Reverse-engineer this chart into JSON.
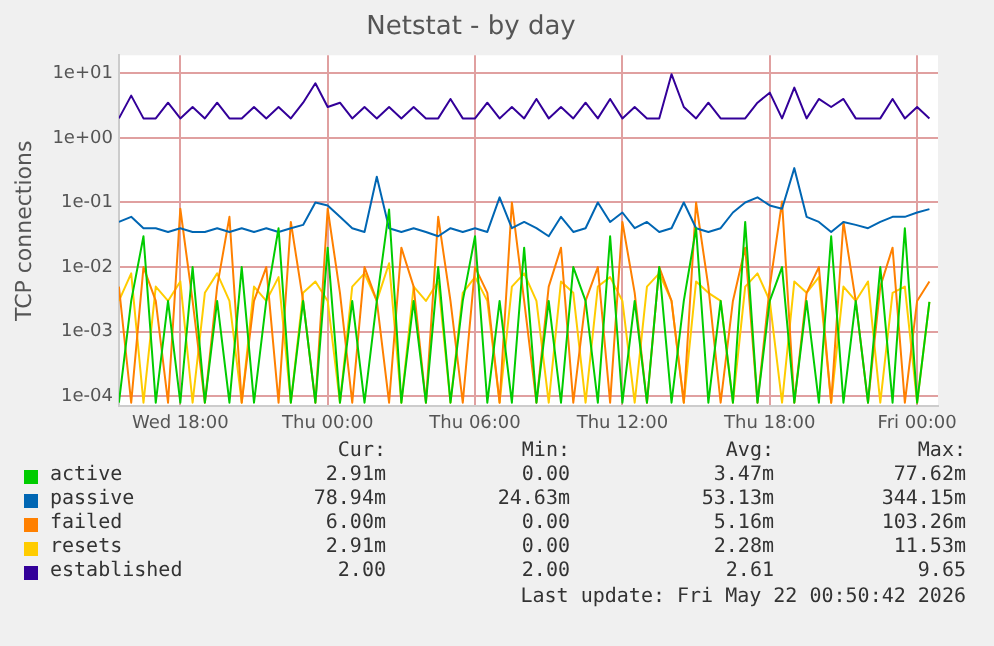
{
  "chart_data": {
    "type": "line",
    "title": "Netstat - by day",
    "ylabel": "TCP connections",
    "x": [
      "2026-05-20T15:30",
      "2026-05-20T16:00",
      "2026-05-20T16:30",
      "2026-05-20T17:00",
      "2026-05-20T17:30",
      "2026-05-20T18:00",
      "2026-05-20T18:30",
      "2026-05-20T19:00",
      "2026-05-20T19:30",
      "2026-05-20T20:00",
      "2026-05-20T20:30",
      "2026-05-20T21:00",
      "2026-05-20T21:30",
      "2026-05-20T22:00",
      "2026-05-20T22:30",
      "2026-05-20T23:00",
      "2026-05-20T23:30",
      "2026-05-21T00:00",
      "2026-05-21T00:30",
      "2026-05-21T01:00",
      "2026-05-21T01:30",
      "2026-05-21T02:00",
      "2026-05-21T02:30",
      "2026-05-21T03:00",
      "2026-05-21T03:30",
      "2026-05-21T04:00",
      "2026-05-21T04:30",
      "2026-05-21T05:00",
      "2026-05-21T05:30",
      "2026-05-21T06:00",
      "2026-05-21T06:30",
      "2026-05-21T07:00",
      "2026-05-21T07:30",
      "2026-05-21T08:00",
      "2026-05-21T08:30",
      "2026-05-21T09:00",
      "2026-05-21T09:30",
      "2026-05-21T10:00",
      "2026-05-21T10:30",
      "2026-05-21T11:00",
      "2026-05-21T11:30",
      "2026-05-21T12:00",
      "2026-05-21T12:30",
      "2026-05-21T13:00",
      "2026-05-21T13:30",
      "2026-05-21T14:00",
      "2026-05-21T14:30",
      "2026-05-21T15:00",
      "2026-05-21T15:30",
      "2026-05-21T16:00",
      "2026-05-21T16:30",
      "2026-05-21T17:00",
      "2026-05-21T17:30",
      "2026-05-21T18:00",
      "2026-05-21T18:30",
      "2026-05-21T19:00",
      "2026-05-21T19:30",
      "2026-05-21T20:00",
      "2026-05-21T20:30",
      "2026-05-21T21:00",
      "2026-05-21T21:30",
      "2026-05-21T22:00",
      "2026-05-21T22:30",
      "2026-05-21T23:00",
      "2026-05-21T23:30",
      "2026-05-22T00:00",
      "2026-05-22T00:30"
    ],
    "xlim": [
      "2026-05-20T15:30",
      "2026-05-22T00:51"
    ],
    "xticks": [
      {
        "value": "2026-05-20T18:00",
        "label": "Wed 18:00"
      },
      {
        "value": "2026-05-21T00:00",
        "label": "Thu 00:00"
      },
      {
        "value": "2026-05-21T06:00",
        "label": "Thu 06:00"
      },
      {
        "value": "2026-05-21T12:00",
        "label": "Thu 12:00"
      },
      {
        "value": "2026-05-21T18:00",
        "label": "Thu 18:00"
      },
      {
        "value": "2026-05-22T00:00",
        "label": "Fri 00:00"
      }
    ],
    "log": "y",
    "ylim": [
      7.5e-05,
      19
    ],
    "yticks": [
      {
        "value": 10,
        "label": "1e+01"
      },
      {
        "value": 1,
        "label": "1e+00"
      },
      {
        "value": 0.1,
        "label": "1e-01"
      },
      {
        "value": 0.01,
        "label": "1e-02"
      },
      {
        "value": 0.001,
        "label": "1e-03"
      },
      {
        "value": 0.0001,
        "label": "1e-04"
      }
    ],
    "grid": true,
    "legend": "bottom",
    "series": [
      {
        "name": "active",
        "color": "#00cc00",
        "values": [
          8e-05,
          0.003,
          0.03,
          8e-05,
          0.003,
          8e-05,
          0.01,
          8e-05,
          0.003,
          8e-05,
          0.01,
          8e-05,
          0.003,
          0.04,
          8e-05,
          0.003,
          8e-05,
          0.02,
          8e-05,
          0.003,
          8e-05,
          0.003,
          0.0776,
          8e-05,
          0.003,
          8e-05,
          0.01,
          8e-05,
          0.003,
          0.03,
          8e-05,
          0.003,
          8e-05,
          0.02,
          8e-05,
          0.003,
          8e-05,
          0.01,
          0.003,
          8e-05,
          0.03,
          8e-05,
          0.003,
          8e-05,
          0.01,
          8e-05,
          0.003,
          0.04,
          8e-05,
          0.003,
          8e-05,
          0.05,
          8e-05,
          0.003,
          0.01,
          8e-05,
          0.003,
          8e-05,
          0.03,
          8e-05,
          0.003,
          8e-05,
          0.01,
          8e-05,
          0.04,
          8e-05,
          0.00291
        ]
      },
      {
        "name": "passive",
        "color": "#0066b3",
        "values": [
          0.05,
          0.06,
          0.04,
          0.04,
          0.035,
          0.04,
          0.035,
          0.035,
          0.04,
          0.035,
          0.04,
          0.035,
          0.04,
          0.035,
          0.04,
          0.045,
          0.1,
          0.09,
          0.06,
          0.04,
          0.035,
          0.25,
          0.04,
          0.035,
          0.04,
          0.035,
          0.03,
          0.04,
          0.035,
          0.04,
          0.035,
          0.12,
          0.04,
          0.05,
          0.04,
          0.03,
          0.06,
          0.035,
          0.04,
          0.1,
          0.05,
          0.07,
          0.04,
          0.05,
          0.035,
          0.04,
          0.1,
          0.04,
          0.035,
          0.04,
          0.07,
          0.1,
          0.12,
          0.09,
          0.08,
          0.34,
          0.06,
          0.05,
          0.035,
          0.05,
          0.045,
          0.04,
          0.05,
          0.06,
          0.06,
          0.07,
          0.07894
        ]
      },
      {
        "name": "failed",
        "color": "#ff8000",
        "values": [
          0.005,
          8e-05,
          0.01,
          0.003,
          8e-05,
          0.08,
          0.003,
          8e-05,
          0.005,
          0.06,
          8e-05,
          0.003,
          0.01,
          8e-05,
          0.05,
          0.003,
          8e-05,
          0.08,
          0.004,
          8e-05,
          0.01,
          0.003,
          8e-05,
          0.02,
          0.005,
          8e-05,
          0.06,
          0.003,
          8e-05,
          0.01,
          0.004,
          8e-05,
          0.1,
          0.003,
          8e-05,
          0.005,
          0.02,
          8e-05,
          0.003,
          0.01,
          8e-05,
          0.05,
          0.004,
          8e-05,
          0.01,
          0.003,
          8e-05,
          0.1,
          0.005,
          8e-05,
          0.003,
          0.02,
          8e-05,
          0.005,
          0.1033,
          8e-05,
          0.004,
          0.01,
          8e-05,
          0.05,
          0.003,
          8e-05,
          0.005,
          0.02,
          8e-05,
          0.003,
          0.006
        ]
      },
      {
        "name": "resets",
        "color": "#ffcc00",
        "values": [
          0.003,
          0.008,
          8e-05,
          0.005,
          0.003,
          0.006,
          8e-05,
          0.004,
          0.008,
          0.003,
          8e-05,
          0.005,
          0.003,
          0.007,
          8e-05,
          0.004,
          0.006,
          0.003,
          8e-05,
          0.005,
          0.008,
          0.003,
          0.0115,
          8e-05,
          0.005,
          0.003,
          0.006,
          8e-05,
          0.004,
          0.007,
          0.003,
          8e-05,
          0.005,
          0.008,
          0.003,
          8e-05,
          0.006,
          0.004,
          8e-05,
          0.005,
          0.007,
          0.003,
          8e-05,
          0.005,
          0.008,
          0.003,
          8e-05,
          0.006,
          0.004,
          0.003,
          8e-05,
          0.005,
          0.008,
          0.003,
          8e-05,
          0.006,
          0.004,
          0.007,
          8e-05,
          0.005,
          0.003,
          0.006,
          8e-05,
          0.004,
          0.005,
          8e-05,
          0.00291
        ]
      },
      {
        "name": "established",
        "color": "#330099",
        "values": [
          2,
          4.5,
          2,
          2,
          3.5,
          2,
          3,
          2,
          3.5,
          2,
          2,
          3,
          2,
          3,
          2,
          3.5,
          7,
          3,
          3.5,
          2,
          3,
          2,
          3,
          2,
          3,
          2,
          2,
          4,
          2,
          2,
          3.5,
          2,
          3,
          2,
          4,
          2,
          3,
          2,
          3.5,
          2,
          4,
          2,
          3,
          2,
          2,
          9.65,
          3,
          2,
          3.5,
          2,
          2,
          2,
          3.5,
          5,
          2,
          6,
          2,
          4,
          3,
          4,
          2,
          2,
          2,
          4,
          2,
          3,
          2
        ]
      }
    ],
    "annotations": [
      "Cur:",
      "Min:",
      "Avg:",
      "Max:",
      "2.91m",
      "0.00",
      "3.47m",
      "77.62m",
      "78.94m",
      "24.63m",
      "53.13m",
      "344.15m",
      "6.00m",
      "0.00",
      "5.16m",
      "103.26m",
      "2.91m",
      "0.00",
      "2.28m",
      "11.53m",
      "2.00",
      "2.00",
      "2.61",
      "9.65",
      "Last update: Fri May 22 00:50:42 2026"
    ]
  }
}
